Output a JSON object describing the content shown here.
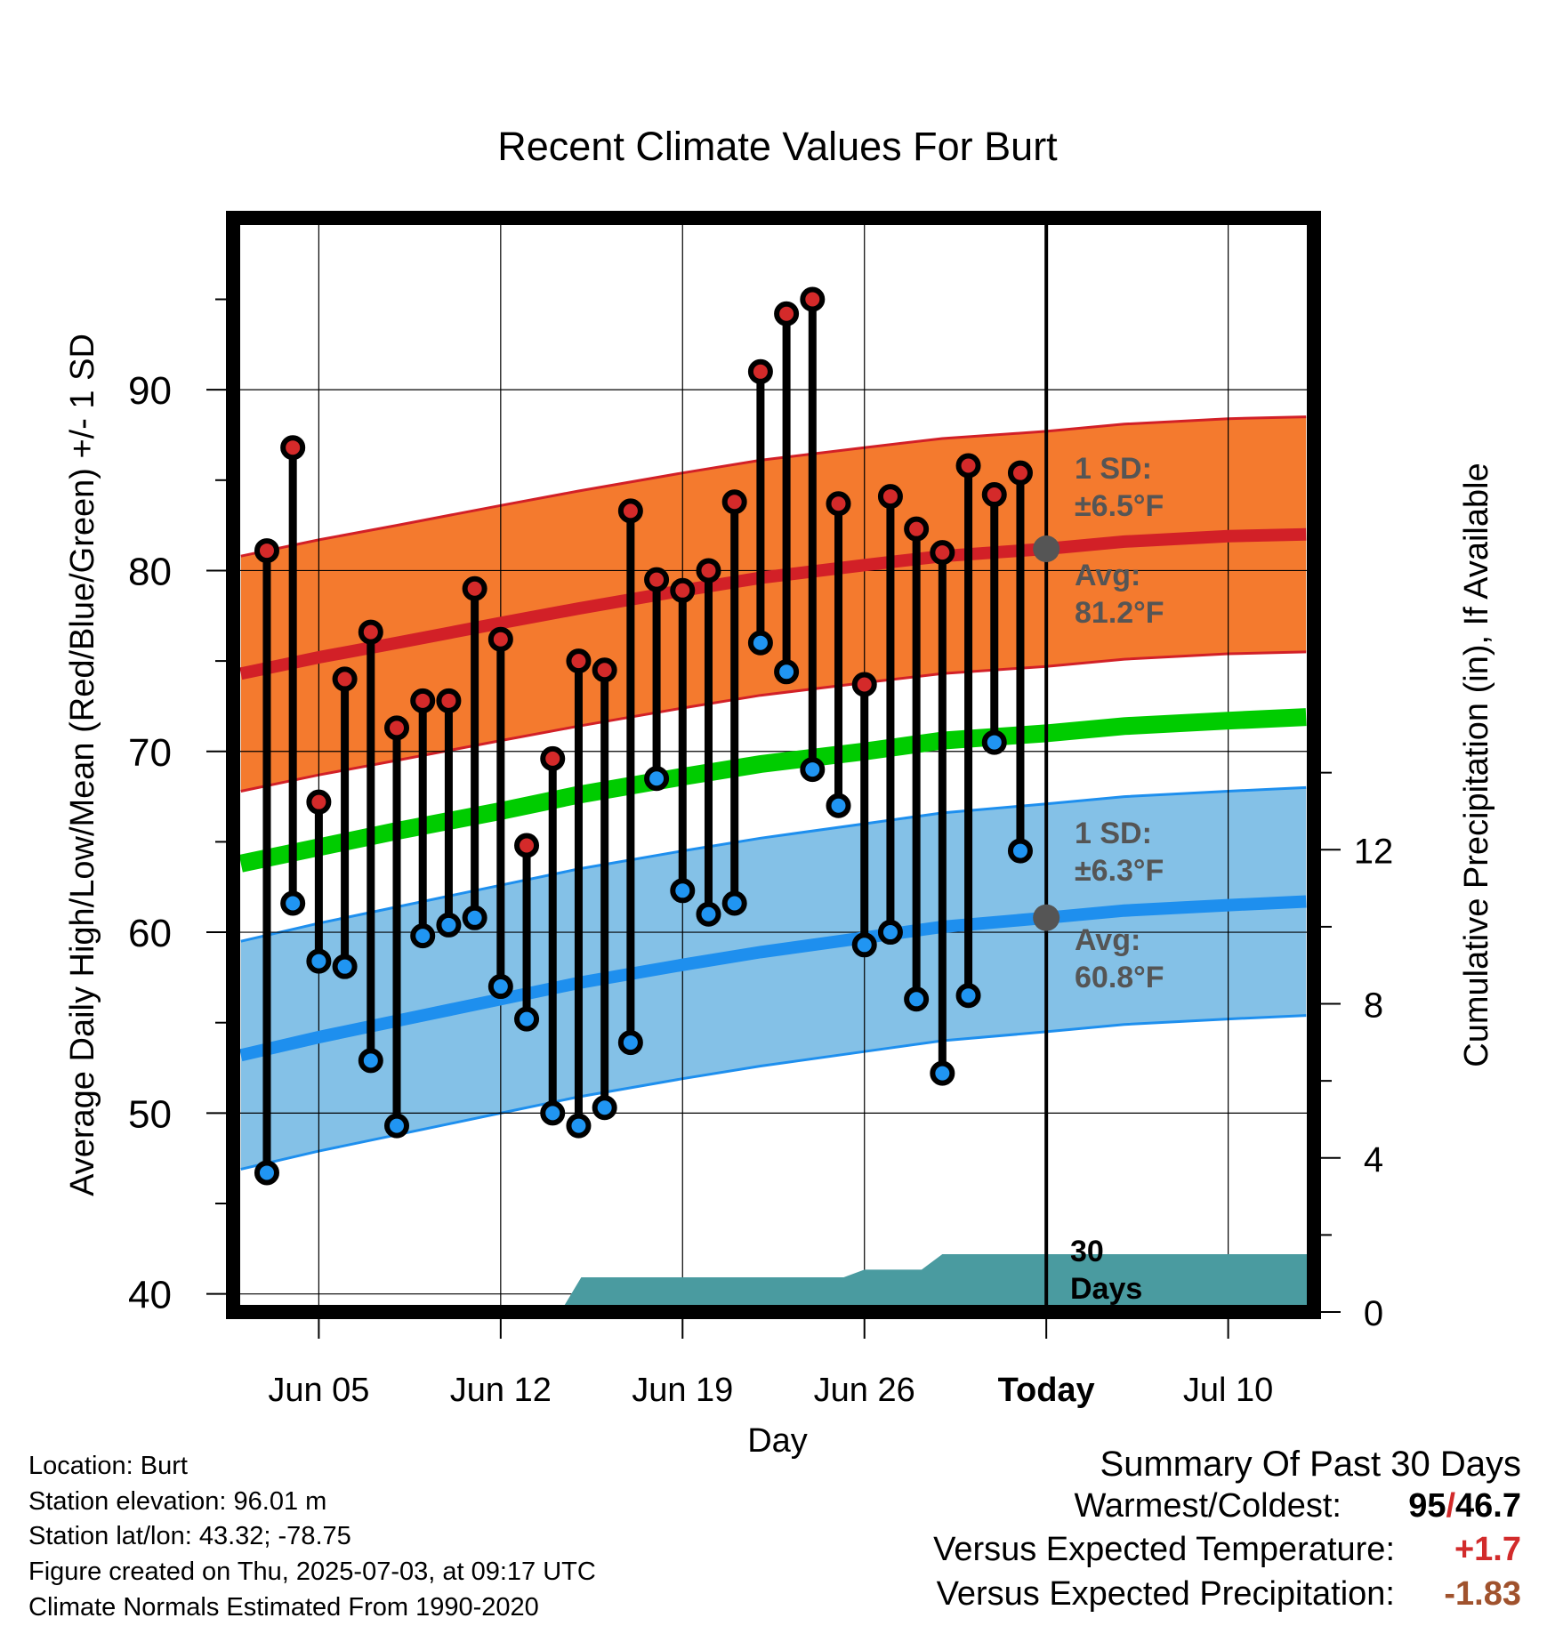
{
  "chart_data": {
    "type": "line",
    "title": "Recent Climate Values For Burt",
    "xlabel": "Day",
    "ylabel_left": "Average Daily High/Low/Mean (Red/Blue/Green) +/- 1 SD",
    "ylabel_right": "Cumulative Precipitation (in), If Available",
    "xlim": [
      -3.3,
      38.3
    ],
    "ylim_left": [
      39,
      99.5
    ],
    "ylim_right": [
      0,
      28.4
    ],
    "x_ticks": [
      {
        "x": 0,
        "label": "Jun 05"
      },
      {
        "x": 7,
        "label": "Jun 12"
      },
      {
        "x": 14,
        "label": "Jun 19"
      },
      {
        "x": 21,
        "label": "Jun 26"
      },
      {
        "x": 28,
        "label": "Today"
      },
      {
        "x": 35,
        "label": "Jul 10"
      }
    ],
    "y_ticks_left": [
      40,
      50,
      60,
      70,
      80,
      90
    ],
    "y_ticks_right": [
      0,
      4,
      8,
      12
    ],
    "grid": true,
    "today_x": 28,
    "today_label": "30 Days",
    "daily_x": [
      -2,
      -1,
      0,
      1,
      2,
      3,
      4,
      5,
      6,
      7,
      8,
      9,
      10,
      11,
      12,
      13,
      14,
      15,
      16,
      17,
      18,
      19,
      20,
      21,
      22,
      23,
      24,
      25,
      26,
      27
    ],
    "daily_high": [
      81.1,
      86.8,
      67.2,
      74.0,
      76.6,
      71.3,
      72.8,
      72.8,
      79.0,
      76.2,
      64.8,
      69.6,
      75.0,
      74.5,
      83.3,
      79.5,
      78.9,
      80.0,
      83.8,
      91.0,
      94.2,
      95.0,
      83.7,
      73.7,
      84.1,
      82.3,
      81.0,
      85.8,
      84.2,
      85.4
    ],
    "daily_low": [
      46.7,
      61.6,
      58.4,
      58.1,
      52.9,
      49.3,
      59.8,
      60.4,
      60.8,
      57.0,
      55.2,
      50.0,
      49.3,
      50.3,
      53.9,
      68.5,
      62.3,
      61.0,
      61.6,
      76.0,
      74.4,
      69.0,
      67.0,
      59.3,
      60.0,
      56.3,
      52.2,
      56.5,
      70.5,
      64.5
    ],
    "normal_x": [
      -3,
      0,
      3,
      7,
      10,
      14,
      17,
      21,
      24,
      28,
      31,
      35,
      38
    ],
    "normal_high": [
      74.3,
      75.2,
      76.0,
      77.1,
      77.9,
      78.9,
      79.6,
      80.3,
      80.8,
      81.2,
      81.6,
      81.9,
      82.0
    ],
    "normal_low": [
      53.2,
      54.2,
      55.1,
      56.3,
      57.2,
      58.2,
      58.9,
      59.7,
      60.3,
      60.8,
      61.2,
      61.5,
      61.7
    ],
    "normal_mean": [
      63.8,
      64.7,
      65.6,
      66.7,
      67.6,
      68.6,
      69.3,
      70.0,
      70.6,
      71.0,
      71.4,
      71.7,
      71.9
    ],
    "sd_high": 6.5,
    "sd_low": 6.3,
    "precip_steps": [
      {
        "x": -3.3,
        "y": 0
      },
      {
        "x": 9.3,
        "y": 0
      },
      {
        "x": 10.1,
        "y": 0.9
      },
      {
        "x": 20.2,
        "y": 0.9
      },
      {
        "x": 21.0,
        "y": 1.1
      },
      {
        "x": 23.2,
        "y": 1.1
      },
      {
        "x": 24.0,
        "y": 1.5
      },
      {
        "x": 38.3,
        "y": 1.5
      }
    ],
    "annotations": {
      "high_sd_line1": "1 SD:",
      "high_sd_line2": "±6.5°F",
      "high_avg_line1": "Avg:",
      "high_avg_line2": "81.2°F",
      "low_sd_line1": "1 SD:",
      "low_sd_line2": "±6.3°F",
      "low_avg_line1": "Avg:",
      "low_avg_line2": "60.8°F",
      "today_line1": "30",
      "today_line2": "Days"
    }
  },
  "colors": {
    "high_band": "#f47a2e",
    "high_line": "#d22027",
    "low_band": "#84c1e7",
    "low_line": "#1e8fee",
    "mean_line": "#00cc00",
    "precip": "#4a9ba0",
    "annotation": "#555555",
    "high_marker": "#d42a2a",
    "low_marker": "#2095f2",
    "pos_anomaly": "#d22b2b",
    "neg_anomaly": "#a0522d"
  },
  "info": {
    "location": "Location: Burt",
    "elevation": "Station elevation: 96.01 m",
    "latlon": "Station lat/lon: 43.32; -78.75",
    "created": "Figure created on Thu, 2025-07-03, at 09:17 UTC",
    "normals": "Climate Normals Estimated From 1990-2020"
  },
  "summary": {
    "title": "Summary Of Past 30 Days",
    "warmest_label": "Warmest/Coldest:",
    "warmest_value": "95",
    "slash": "/",
    "coldest_value": "46.7",
    "temp_label": "Versus Expected Temperature:",
    "temp_value": "+1.7",
    "precip_label": "Versus Expected Precipitation:",
    "precip_value": "-1.83"
  }
}
